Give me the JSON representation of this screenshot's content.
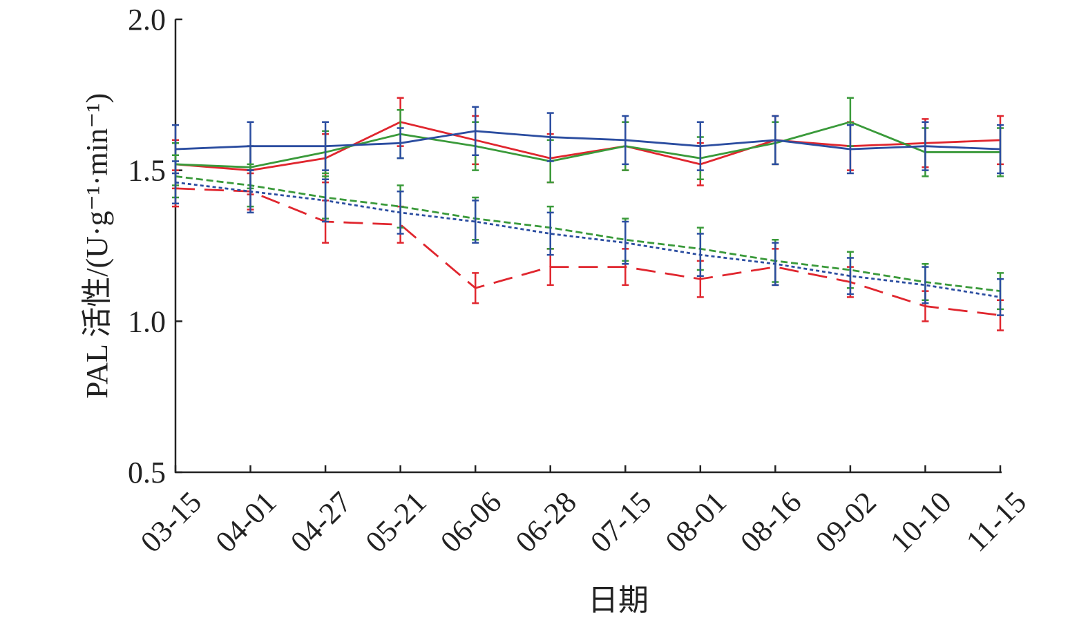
{
  "chart_data": {
    "type": "line",
    "x_label": "日期",
    "y_label": "PAL 活性/(U·g⁻¹·min⁻¹)",
    "categories": [
      "03-15",
      "04-01",
      "04-27",
      "05-21",
      "06-06",
      "06-28",
      "07-15",
      "08-01",
      "08-16",
      "09-02",
      "10-10",
      "11-15"
    ],
    "ylim": [
      0.5,
      2.0
    ],
    "yticks": [
      0.5,
      {
        "value": 1,
        "label": "1.0"
      },
      1.5,
      {
        "value": 2,
        "label": "2.0"
      }
    ],
    "series": [
      {
        "color": "#e0262e",
        "dash": "solid",
        "values": [
          1.52,
          1.5,
          1.54,
          1.66,
          1.6,
          1.54,
          1.58,
          1.52,
          1.6,
          1.58,
          1.59,
          1.6
        ],
        "errors": [
          0.08,
          0.08,
          0.08,
          0.08,
          0.08,
          0.08,
          0.08,
          0.07,
          0.08,
          0.08,
          0.08,
          0.08
        ]
      },
      {
        "color": "#3a9a3a",
        "dash": "solid",
        "values": [
          1.52,
          1.51,
          1.56,
          1.62,
          1.58,
          1.53,
          1.58,
          1.54,
          1.59,
          1.66,
          1.56,
          1.56
        ],
        "errors": [
          0.07,
          0.07,
          0.07,
          0.08,
          0.08,
          0.07,
          0.08,
          0.07,
          0.07,
          0.08,
          0.08,
          0.08
        ]
      },
      {
        "color": "#2b4da0",
        "dash": "solid",
        "values": [
          1.57,
          1.58,
          1.58,
          1.59,
          1.63,
          1.61,
          1.6,
          1.58,
          1.6,
          1.57,
          1.58,
          1.57
        ],
        "errors": [
          0.08,
          0.08,
          0.08,
          0.05,
          0.08,
          0.08,
          0.08,
          0.08,
          0.08,
          0.08,
          0.08,
          0.08
        ]
      },
      {
        "color": "#e0262e",
        "dash": "long",
        "values": [
          1.44,
          1.43,
          1.33,
          1.32,
          1.11,
          1.18,
          1.18,
          1.14,
          1.18,
          1.13,
          1.05,
          1.02
        ],
        "errors": [
          0.06,
          0.06,
          0.07,
          0.06,
          0.05,
          0.06,
          0.06,
          0.06,
          0.06,
          0.05,
          0.05,
          0.05
        ]
      },
      {
        "color": "#3a9a3a",
        "dash": "short",
        "values": [
          1.48,
          1.45,
          1.41,
          1.38,
          1.34,
          1.31,
          1.27,
          1.24,
          1.2,
          1.17,
          1.13,
          1.1
        ],
        "errors": [
          0.07,
          0.07,
          0.07,
          0.07,
          0.07,
          0.07,
          0.07,
          0.07,
          0.07,
          0.06,
          0.06,
          0.06
        ]
      },
      {
        "color": "#2b4da0",
        "dash": "dot",
        "values": [
          1.46,
          1.43,
          1.4,
          1.36,
          1.33,
          1.29,
          1.26,
          1.22,
          1.19,
          1.15,
          1.12,
          1.08
        ],
        "errors": [
          0.07,
          0.07,
          0.07,
          0.07,
          0.07,
          0.07,
          0.07,
          0.07,
          0.07,
          0.06,
          0.06,
          0.06
        ]
      }
    ]
  }
}
